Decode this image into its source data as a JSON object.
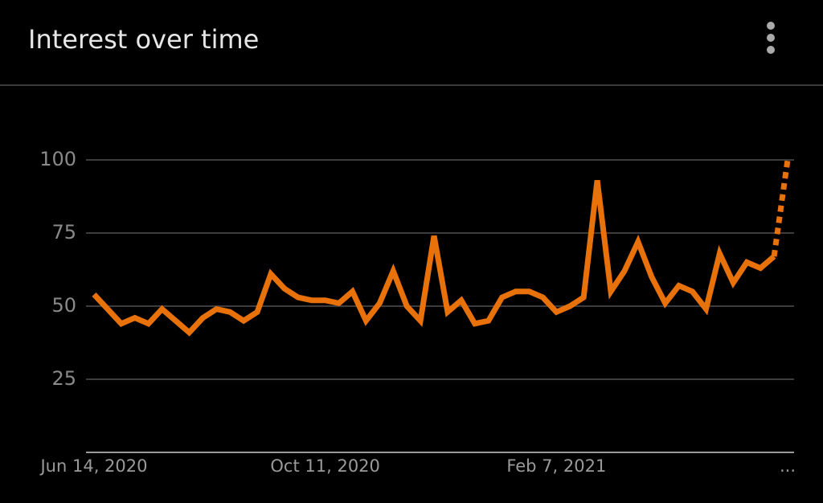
{
  "chart_data": {
    "type": "line",
    "title": "Interest over time",
    "categories": [
      "Jun 14, 2020",
      null,
      null,
      null,
      null,
      null,
      null,
      null,
      null,
      null,
      null,
      null,
      null,
      null,
      null,
      null,
      null,
      "Oct 11, 2020",
      null,
      null,
      null,
      null,
      null,
      null,
      null,
      null,
      null,
      null,
      null,
      null,
      null,
      null,
      null,
      null,
      "Feb 7, 2021",
      null,
      null,
      null,
      null,
      null,
      null,
      null,
      null,
      null,
      null,
      null,
      null,
      null,
      null,
      null,
      null,
      "..."
    ],
    "values": [
      54,
      49,
      44,
      46,
      44,
      49,
      45,
      41,
      46,
      49,
      48,
      45,
      48,
      61,
      56,
      53,
      52,
      52,
      51,
      55,
      45,
      51,
      62,
      50,
      45,
      74,
      48,
      52,
      44,
      45,
      53,
      55,
      55,
      53,
      48,
      50,
      53,
      93,
      55,
      62,
      72,
      60,
      51,
      57,
      55,
      49,
      68,
      58,
      65,
      63,
      67,
      100
    ],
    "color": "#e8710a",
    "last_point_partial": true,
    "ylim": [
      0,
      100
    ],
    "yticks": [
      25,
      50,
      75,
      100
    ],
    "grid": true
  }
}
